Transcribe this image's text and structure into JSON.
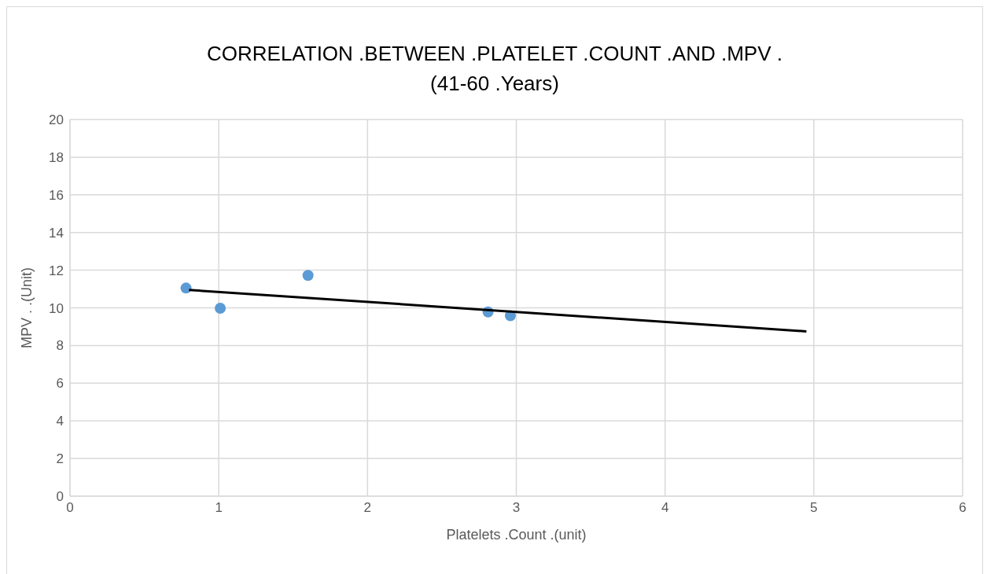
{
  "chart_data": {
    "type": "scatter",
    "title": "CORRELATION .BETWEEN .PLATELET .COUNT .AND .MPV .(41-60 .Years)",
    "xlabel": "Platelets .Count .(unit)",
    "ylabel": "MPV . .(Unit)",
    "xlim": [
      0,
      6
    ],
    "xticks": [
      0,
      1,
      2,
      3,
      4,
      5,
      6
    ],
    "ylim": [
      0,
      20
    ],
    "yticks": [
      0,
      2,
      4,
      6,
      8,
      10,
      12,
      14,
      16,
      18,
      20
    ],
    "grid": true,
    "legend": false,
    "series": [
      {
        "type": "scatter",
        "color": "#5b9bd5",
        "marker": "circle",
        "x": [
          0.78,
          1.01,
          1.6,
          2.81,
          2.96
        ],
        "values": [
          11.05,
          9.98,
          11.72,
          9.78,
          9.58
        ]
      },
      {
        "type": "line",
        "color": "#000000",
        "marker": "none",
        "x": [
          0.8,
          4.95
        ],
        "values": [
          10.95,
          8.75
        ]
      }
    ]
  }
}
